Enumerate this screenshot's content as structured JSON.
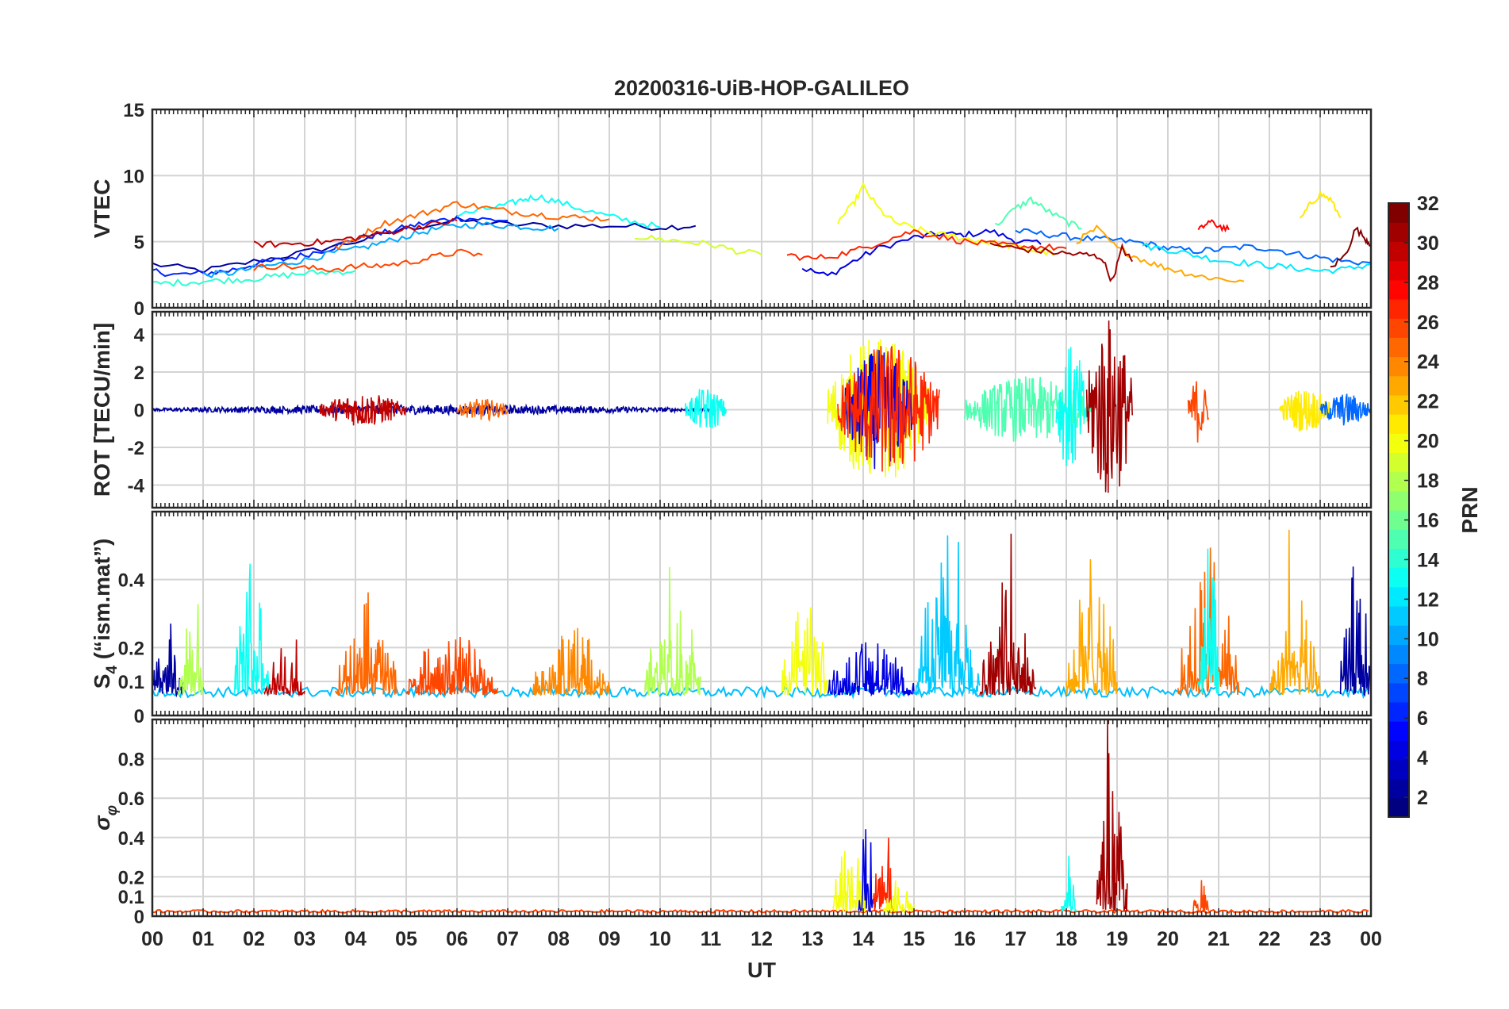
{
  "chart_data": {
    "type": "line",
    "title": "20200316-UiB-HOP-GALILEO",
    "xlabel": "UT",
    "x_ticks": [
      "00",
      "01",
      "02",
      "03",
      "04",
      "05",
      "06",
      "07",
      "08",
      "09",
      "10",
      "11",
      "12",
      "13",
      "14",
      "15",
      "16",
      "17",
      "18",
      "19",
      "20",
      "21",
      "22",
      "23",
      "00"
    ],
    "xlim": [
      0,
      24
    ],
    "grid": true,
    "panels": [
      {
        "id": "vtec",
        "ylabel": "VTEC",
        "ylim": [
          0,
          15
        ],
        "yticks": [
          "0",
          "5",
          "10",
          "15"
        ],
        "series": [
          {
            "prn": 2,
            "x": [
              0,
              1,
              2,
              3,
              4,
              5,
              6,
              7,
              8,
              9,
              10,
              10.7
            ],
            "y": [
              3.3,
              2.8,
              3.5,
              4.2,
              5.0,
              6.0,
              6.6,
              6.3,
              6.2,
              6.2,
              6.1,
              6.2
            ]
          },
          {
            "prn": 4,
            "x": [
              12.8,
              13.3,
              13.8,
              14.3,
              15.0,
              15.5,
              16.0,
              16.5,
              17.0,
              17.5
            ],
            "y": [
              3.0,
              2.4,
              3.5,
              4.5,
              5.3,
              5.6,
              5.5,
              5.8,
              5.1,
              4.8
            ]
          },
          {
            "prn": 6,
            "x": [
              0,
              0.5,
              1,
              1.5,
              2,
              2.5,
              3,
              3.5,
              4,
              4.5,
              5,
              5.5,
              6,
              6.5,
              7
            ],
            "y": [
              2.8,
              2.5,
              2.6,
              2.8,
              3.3,
              3.6,
              4.0,
              4.5,
              5.2,
              5.6,
              6.1,
              6.5,
              6.8,
              6.7,
              6.6
            ]
          },
          {
            "prn": 8,
            "x": [
              17,
              17.5,
              18,
              18.5,
              19,
              19.5,
              20,
              20.5,
              21,
              21.5,
              22,
              22.5,
              23,
              23.5,
              24
            ],
            "y": [
              5.8,
              5.6,
              5.4,
              5.2,
              5.1,
              4.9,
              4.5,
              4.3,
              4.4,
              4.6,
              4.5,
              4.1,
              3.8,
              3.5,
              3.4
            ]
          },
          {
            "prn": 10,
            "x": [
              1,
              1.5,
              2,
              2.5,
              3,
              3.5,
              4,
              4.5,
              5,
              5.5,
              6,
              6.5,
              7,
              7.5,
              8
            ],
            "y": [
              2.5,
              2.6,
              3.0,
              3.3,
              3.6,
              4.1,
              4.4,
              4.9,
              5.4,
              5.9,
              6.2,
              6.3,
              6.2,
              6.1,
              6.0
            ]
          },
          {
            "prn": 12,
            "x": [
              19.5,
              20,
              20.5,
              21,
              21.5,
              22,
              22.5,
              23,
              23.5,
              24
            ],
            "y": [
              4.7,
              4.4,
              4.0,
              3.6,
              3.4,
              3.2,
              3.0,
              2.8,
              2.9,
              3.3
            ]
          },
          {
            "prn": 13,
            "x": [
              6,
              6.5,
              7,
              7.3,
              7.6,
              8,
              8.5,
              9,
              9.5,
              10
            ],
            "y": [
              7.0,
              7.4,
              7.8,
              8.2,
              8.4,
              8.0,
              7.4,
              6.9,
              6.5,
              6.1
            ]
          },
          {
            "prn": 14,
            "x": [
              0,
              0.5,
              1,
              1.5,
              2,
              2.5,
              3,
              3.5,
              4
            ],
            "y": [
              1.8,
              1.9,
              2.0,
              2.1,
              2.2,
              2.4,
              2.6,
              2.7,
              2.8
            ]
          },
          {
            "prn": 15,
            "x": [
              16.6,
              17,
              17.3,
              17.6,
              18,
              18.3
            ],
            "y": [
              6.2,
              7.5,
              8.2,
              7.4,
              6.5,
              6.0
            ]
          },
          {
            "prn": 19,
            "x": [
              9.5,
              10,
              10.5,
              11,
              11.5,
              12
            ],
            "y": [
              5.4,
              5.2,
              5.0,
              4.8,
              4.3,
              4.0
            ]
          },
          {
            "prn": 20,
            "x": [
              13.5,
              13.8,
              14,
              14.3,
              14.6,
              15,
              15.4,
              15.8,
              16.2,
              16.6,
              17,
              17.4,
              17.8
            ],
            "y": [
              6.5,
              7.8,
              9.2,
              7.5,
              6.5,
              6.0,
              5.6,
              5.4,
              5.1,
              4.9,
              4.6,
              4.3,
              4.1
            ]
          },
          {
            "prn": 21,
            "x": [
              22.6,
              22.8,
              23,
              23.2,
              23.4
            ],
            "y": [
              6.6,
              7.8,
              8.6,
              8.2,
              6.8
            ]
          },
          {
            "prn": 23,
            "x": [
              18.2,
              18.6,
              19,
              19.4,
              19.8,
              20.2,
              20.6,
              21,
              21.5
            ],
            "y": [
              5.0,
              6.0,
              4.5,
              3.8,
              3.2,
              2.8,
              2.4,
              2.2,
              2.0
            ]
          },
          {
            "prn": 25,
            "x": [
              3.6,
              4,
              4.5,
              5,
              5.5,
              6,
              6.5,
              7,
              7.5,
              8,
              8.5,
              9
            ],
            "y": [
              4.5,
              5.2,
              6.3,
              6.8,
              7.3,
              7.9,
              7.6,
              7.3,
              7.1,
              6.9,
              6.8,
              6.7
            ]
          },
          {
            "prn": 26,
            "x": [
              2,
              2.5,
              3,
              3.5,
              4,
              4.5,
              5,
              5.5,
              6,
              6.5
            ],
            "y": [
              3.0,
              3.2,
              3.0,
              2.9,
              3.1,
              3.2,
              3.4,
              3.8,
              4.2,
              4.0
            ]
          },
          {
            "prn": 27,
            "x": [
              12.5,
              13,
              13.5,
              14,
              14.5,
              15,
              15.5,
              16,
              16.5,
              17,
              17.5,
              18
            ],
            "y": [
              4.0,
              3.7,
              4.0,
              4.5,
              5.2,
              5.8,
              5.4,
              5.0,
              4.8,
              4.7,
              4.6,
              4.5
            ]
          },
          {
            "prn": 28,
            "x": [
              20.6,
              20.8,
              21,
              21.2
            ],
            "y": [
              5.8,
              6.5,
              6.2,
              5.9
            ]
          },
          {
            "prn": 30,
            "x": [
              2,
              2.5,
              3,
              3.5,
              4,
              4.5,
              5,
              5.5,
              6
            ],
            "y": [
              4.8,
              4.8,
              4.9,
              5.0,
              5.3,
              5.6,
              6.0,
              6.3,
              6.6
            ]
          },
          {
            "prn": 31,
            "x": [
              16.5,
              17,
              17.5,
              18,
              18.4,
              18.7,
              18.9,
              19.1,
              19.3
            ],
            "y": [
              4.8,
              4.5,
              4.3,
              4.1,
              4.0,
              3.8,
              2.0,
              4.5,
              3.5
            ]
          },
          {
            "prn": 32,
            "x": [
              23.2,
              23.5,
              23.7,
              23.9,
              24
            ],
            "y": [
              3.0,
              4.0,
              6.0,
              5.2,
              4.8
            ]
          }
        ]
      },
      {
        "id": "rot",
        "ylabel": "ROT [TECU/min]",
        "ylim": [
          -5.2,
          5.2
        ],
        "yticks": [
          "-4",
          "-2",
          "0",
          "2",
          "4"
        ],
        "ytick_values": [
          -4,
          -2,
          0,
          2,
          4
        ],
        "bursts": [
          {
            "prn": 2,
            "x_start": 0.0,
            "x_end": 11.0,
            "amplitude": 0.25
          },
          {
            "prn": 30,
            "x_start": 3.3,
            "x_end": 5.0,
            "amplitude": 0.9
          },
          {
            "prn": 25,
            "x_start": 6.0,
            "x_end": 7.0,
            "amplitude": 0.6
          },
          {
            "prn": 13,
            "x_start": 10.5,
            "x_end": 11.3,
            "amplitude": 1.2
          },
          {
            "prn": 20,
            "x_start": 13.3,
            "x_end": 15.3,
            "amplitude": 4.0
          },
          {
            "prn": 4,
            "x_start": 13.6,
            "x_end": 15.0,
            "amplitude": 3.2
          },
          {
            "prn": 27,
            "x_start": 13.5,
            "x_end": 15.5,
            "amplitude": 3.6
          },
          {
            "prn": 15,
            "x_start": 16.0,
            "x_end": 18.5,
            "amplitude": 1.8
          },
          {
            "prn": 13,
            "x_start": 17.8,
            "x_end": 18.4,
            "amplitude": 3.5
          },
          {
            "prn": 31,
            "x_start": 18.4,
            "x_end": 19.3,
            "amplitude": 5.0
          },
          {
            "prn": 26,
            "x_start": 20.4,
            "x_end": 20.8,
            "amplitude": 1.8
          },
          {
            "prn": 21,
            "x_start": 22.2,
            "x_end": 23.2,
            "amplitude": 1.2
          },
          {
            "prn": 8,
            "x_start": 23.0,
            "x_end": 24.0,
            "amplitude": 0.9
          }
        ]
      },
      {
        "id": "s4",
        "ylabel": "S4 (\"ism.mat\")",
        "ylim": [
          0,
          0.6
        ],
        "yticks": [
          "0",
          "0.1",
          "0.2",
          "0.4"
        ],
        "ytick_values": [
          0,
          0.1,
          0.2,
          0.4
        ],
        "bursts": [
          {
            "prn": 2,
            "x_start": 0.0,
            "x_end": 0.6,
            "amplitude": 0.3
          },
          {
            "prn": 18,
            "x_start": 0.5,
            "x_end": 1.0,
            "amplitude": 0.35
          },
          {
            "prn": 13,
            "x_start": 1.6,
            "x_end": 2.3,
            "amplitude": 0.5
          },
          {
            "prn": 30,
            "x_start": 2.2,
            "x_end": 3.0,
            "amplitude": 0.22
          },
          {
            "prn": 25,
            "x_start": 3.6,
            "x_end": 4.8,
            "amplitude": 0.38
          },
          {
            "prn": 26,
            "x_start": 5.0,
            "x_end": 6.8,
            "amplitude": 0.28
          },
          {
            "prn": 24,
            "x_start": 7.5,
            "x_end": 9.0,
            "amplitude": 0.3
          },
          {
            "prn": 18,
            "x_start": 9.7,
            "x_end": 10.8,
            "amplitude": 0.45
          },
          {
            "prn": 20,
            "x_start": 12.4,
            "x_end": 13.3,
            "amplitude": 0.4
          },
          {
            "prn": 4,
            "x_start": 13.3,
            "x_end": 15.0,
            "amplitude": 0.25
          },
          {
            "prn": 11,
            "x_start": 15.0,
            "x_end": 16.3,
            "amplitude": 0.58
          },
          {
            "prn": 31,
            "x_start": 16.3,
            "x_end": 17.4,
            "amplitude": 0.45
          },
          {
            "prn": 23,
            "x_start": 18.0,
            "x_end": 19.0,
            "amplitude": 0.5
          },
          {
            "prn": 25,
            "x_start": 20.2,
            "x_end": 21.4,
            "amplitude": 0.55
          },
          {
            "prn": 13,
            "x_start": 20.6,
            "x_end": 21.0,
            "amplitude": 0.5
          },
          {
            "prn": 23,
            "x_start": 22.0,
            "x_end": 23.0,
            "amplitude": 0.4
          },
          {
            "prn": 2,
            "x_start": 23.4,
            "x_end": 24.0,
            "amplitude": 0.6
          }
        ]
      },
      {
        "id": "sigma_phi",
        "ylabel": "σφ",
        "ylim": [
          0,
          1.0
        ],
        "yticks": [
          "0",
          "0.1",
          "0.2",
          "0.4",
          "0.6",
          "0.8"
        ],
        "ytick_values": [
          0,
          0.1,
          0.2,
          0.4,
          0.6,
          0.8
        ],
        "bursts": [
          {
            "prn": 20,
            "x_start": 13.4,
            "x_end": 14.1,
            "amplitude": 0.48
          },
          {
            "prn": 4,
            "x_start": 13.9,
            "x_end": 14.2,
            "amplitude": 0.5
          },
          {
            "prn": 27,
            "x_start": 14.2,
            "x_end": 14.6,
            "amplitude": 0.64
          },
          {
            "prn": 20,
            "x_start": 14.4,
            "x_end": 15.0,
            "amplitude": 0.2
          },
          {
            "prn": 13,
            "x_start": 17.9,
            "x_end": 18.2,
            "amplitude": 0.4
          },
          {
            "prn": 31,
            "x_start": 18.6,
            "x_end": 19.2,
            "amplitude": 0.98
          },
          {
            "prn": 26,
            "x_start": 20.5,
            "x_end": 20.8,
            "amplitude": 0.27
          }
        ]
      }
    ],
    "colorbar": {
      "label": "PRN",
      "colormap": "jet",
      "range": [
        1,
        32
      ],
      "ticks": [
        "2",
        "4",
        "6",
        "8",
        "10",
        "12",
        "14",
        "16",
        "18",
        "20",
        "22",
        "24",
        "26",
        "28",
        "30",
        "32"
      ]
    }
  }
}
